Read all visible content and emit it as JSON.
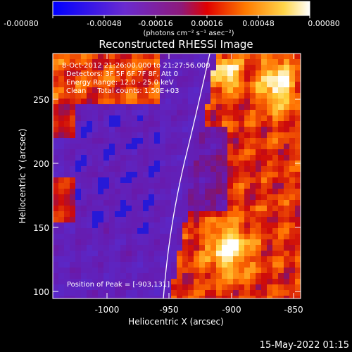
{
  "colorbar": {
    "ticks": [
      "-0.00080",
      "-0.00048",
      "-0.00016",
      "0.00016",
      "0.00048",
      "0.00080"
    ],
    "unit_label": "(photons cm⁻² s⁻¹ asec⁻²)",
    "gradient_colors": [
      "#0000ff",
      "#6a2bd0",
      "#8e1a7a",
      "#e00000",
      "#ff7a00",
      "#ffd54a",
      "#ffffff"
    ]
  },
  "image": {
    "title": "Reconstructed RHESSI Image",
    "info_lines": [
      "8-Oct-2012 21:26:00.000 to 21:27:56.000",
      "Detectors: 3F 5F 6F 7F 8F, Att 0",
      "Energy Range: 12.0 - 25.0 keV",
      "Clean     Total counts: 1.50E+03"
    ],
    "peak_label": "Position of Peak = [-903,131]",
    "xlabel": "Heliocentric X (arcsec)",
    "ylabel": "Heliocentric Y (arcsec)",
    "x_ticks": [
      "-1000",
      "-950",
      "-900",
      "-850"
    ],
    "y_ticks": [
      "100",
      "150",
      "200",
      "250"
    ],
    "xlim": [
      -1040,
      -845
    ],
    "ylim": [
      95,
      283
    ]
  },
  "footer": {
    "timestamp": "15-May-2022 01:15"
  }
}
